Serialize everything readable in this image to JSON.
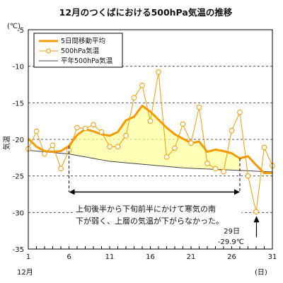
{
  "chart_data": {
    "type": "line",
    "title": "12月のつくばにおける500hPa気温の推移",
    "ylabel": "気温",
    "yunit": "(℃)",
    "xlabel_left": "12月",
    "xlabel_right": "(日)",
    "ylim": [
      -35,
      -5
    ],
    "xlim": [
      1,
      31
    ],
    "yticks": [
      -5,
      -10,
      -15,
      -20,
      -25,
      -30,
      -35
    ],
    "xticks": [
      1,
      6,
      11,
      16,
      21,
      26,
      31
    ],
    "grid": true,
    "legend_position": "top-left",
    "x": [
      1,
      2,
      3,
      4,
      5,
      6,
      7,
      8,
      9,
      10,
      11,
      12,
      13,
      14,
      15,
      16,
      17,
      18,
      19,
      20,
      21,
      22,
      23,
      24,
      25,
      26,
      27,
      28,
      29,
      30,
      31
    ],
    "series": [
      {
        "name": "5日間移動平均",
        "color": "#f59a00",
        "values": [
          -19.9,
          -21.0,
          -21.6,
          -21.7,
          -21.6,
          -20.9,
          -19.4,
          -18.6,
          -18.9,
          -19.3,
          -19.5,
          -19.0,
          -17.4,
          -16.9,
          -15.4,
          -16.2,
          -17.3,
          -18.4,
          -19.3,
          -19.9,
          -20.5,
          -20.3,
          -21.7,
          -21.4,
          -21.6,
          -21.9,
          -22.6,
          -22.3,
          -23.5,
          -24.6,
          -24.6
        ]
      },
      {
        "name": "500hPa気温",
        "color": "#f59a00",
        "values": [
          -21.3,
          -18.9,
          -22.0,
          -20.8,
          -24.0,
          -21.5,
          -18.4,
          -18.5,
          -18.0,
          -19.0,
          -21.0,
          -21.0,
          -19.5,
          -14.3,
          -12.6,
          -17.5,
          -10.8,
          -22.4,
          -21.2,
          -17.9,
          -20.5,
          -15.6,
          -23.3,
          -24.0,
          -24.4,
          -18.8,
          -16.3,
          -25.0,
          -29.9,
          -21.1,
          -23.6
        ]
      },
      {
        "name": "平年500hPa気温",
        "color": "#444444",
        "values": [
          -21.5,
          -21.6,
          -21.7,
          -21.8,
          -21.9,
          -22.0,
          -22.2,
          -22.4,
          -22.6,
          -22.8,
          -23.0,
          -23.1,
          -23.2,
          -23.3,
          -23.4,
          -23.5,
          -23.6,
          -23.7,
          -23.8,
          -23.9,
          -23.95,
          -24.0,
          -24.05,
          -24.1,
          -24.15,
          -24.2,
          -24.25,
          -24.3,
          -24.35,
          -24.4,
          -24.45
        ]
      }
    ],
    "annotations": {
      "range_start_day": 6,
      "range_end_day": 27,
      "arrow_level": -27.2,
      "text_line1": "上旬後半から下旬前半にかけて寒気の南",
      "text_line2": "下が弱く、上層の気温が下がらなかった。",
      "min_label_day": "29日",
      "min_label_value": "-29.9℃",
      "min_day": 29
    }
  }
}
